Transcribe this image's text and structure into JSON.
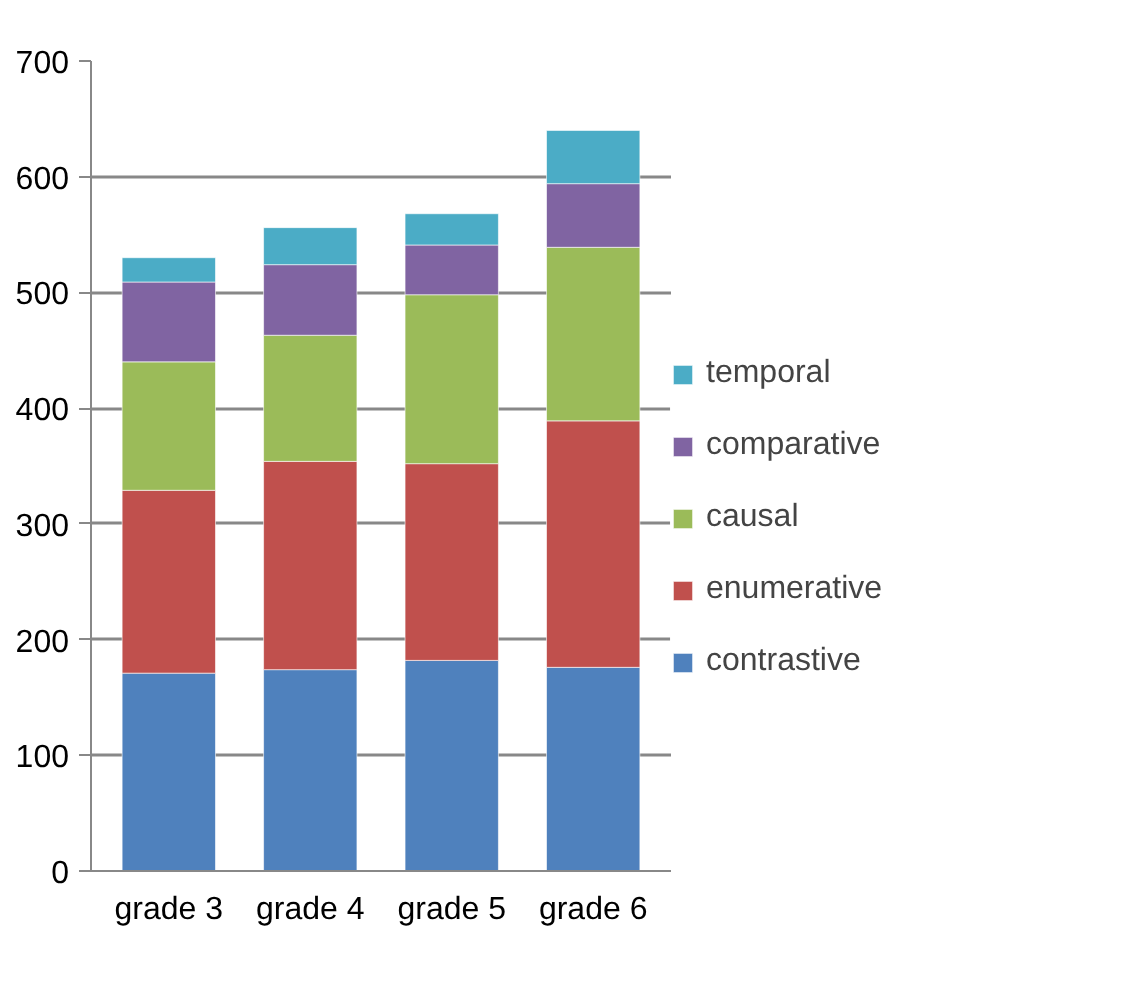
{
  "chart_data": {
    "type": "bar",
    "stacked": true,
    "categories": [
      "grade 3",
      "grade 4",
      "grade 5",
      "grade 6"
    ],
    "series": [
      {
        "name": "contrastive",
        "color": "#4f81bd",
        "values": [
          171,
          174,
          182,
          176
        ]
      },
      {
        "name": "enumerative",
        "color": "#c0504d",
        "values": [
          158,
          180,
          170,
          213
        ]
      },
      {
        "name": "causal",
        "color": "#9bbb59",
        "values": [
          111,
          109,
          146,
          150
        ]
      },
      {
        "name": "comparative",
        "color": "#8064a2",
        "values": [
          69,
          61,
          43,
          55
        ]
      },
      {
        "name": "temporal",
        "color": "#4bacc6",
        "values": [
          21,
          32,
          27,
          46
        ]
      }
    ],
    "ylim": [
      0,
      700
    ],
    "yticks": [
      0,
      100,
      200,
      300,
      400,
      500,
      600,
      700
    ],
    "grid": "y",
    "legend": "right"
  }
}
